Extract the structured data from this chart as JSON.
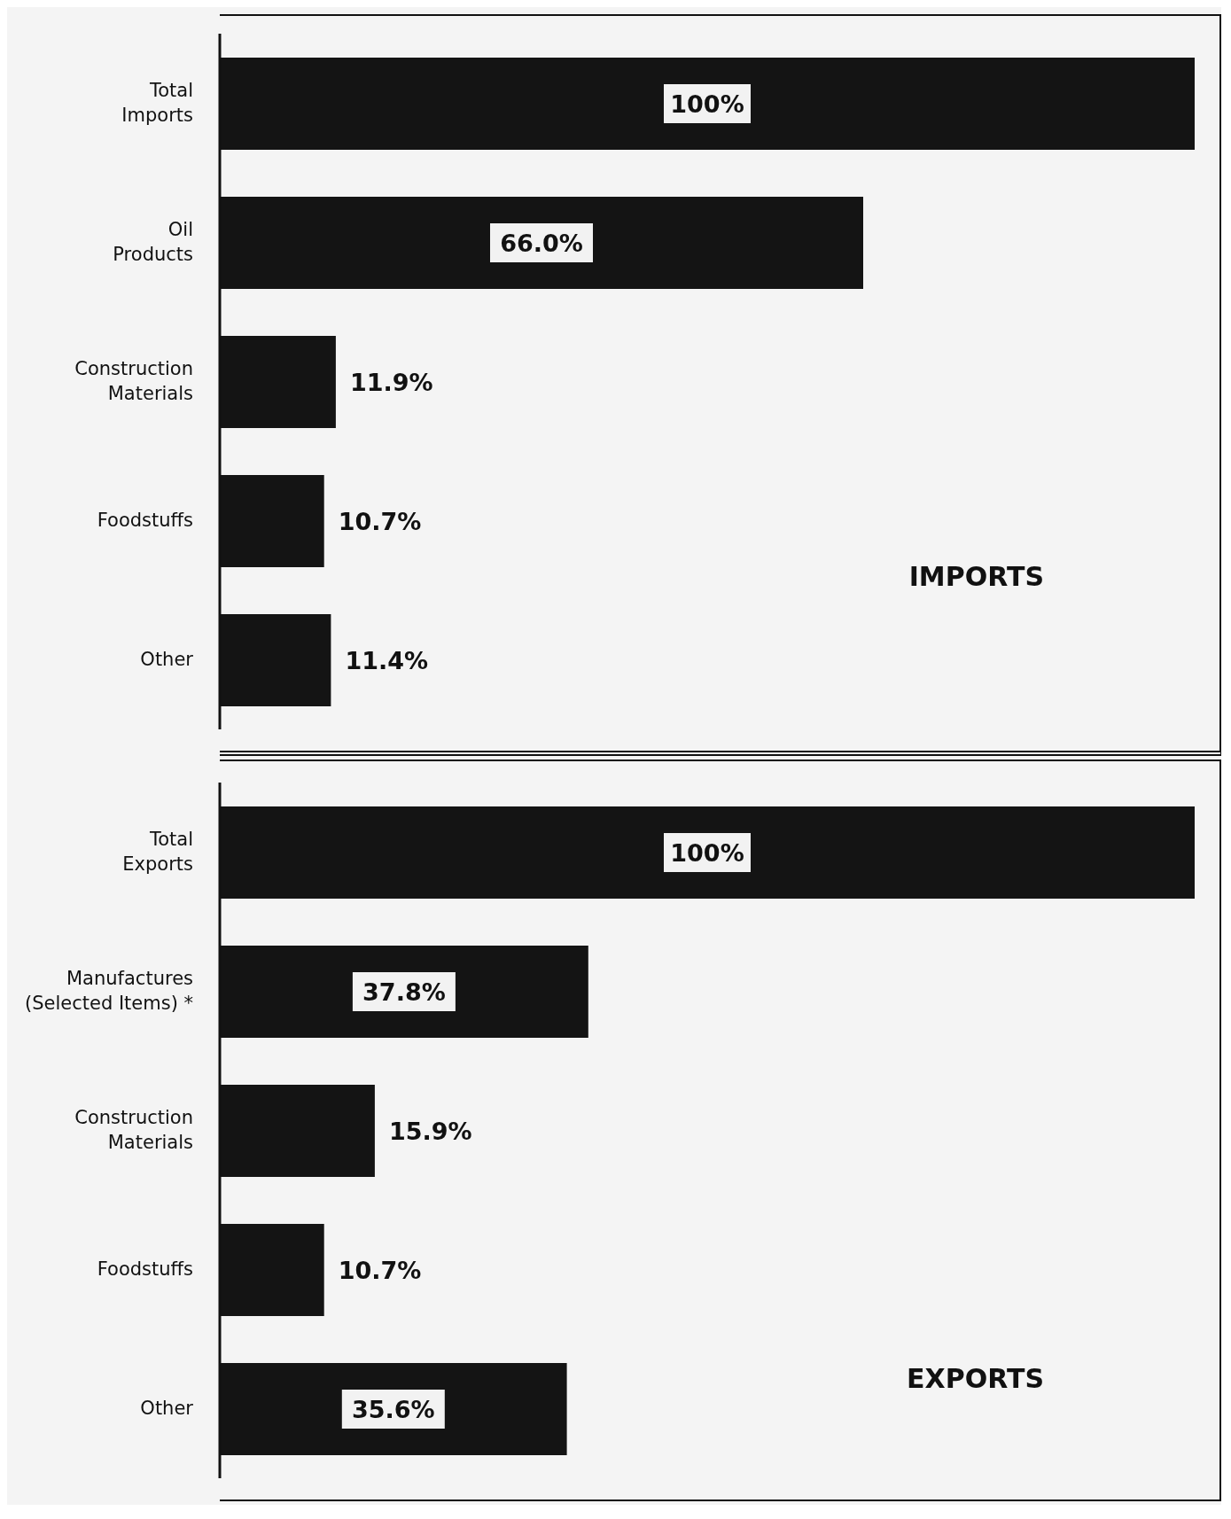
{
  "chart_data": [
    {
      "type": "bar",
      "orientation": "horizontal",
      "title": "IMPORTS",
      "categories": [
        "Total\nImports",
        "Oil\nProducts",
        "Construction\nMaterials",
        "Foodstuffs",
        "Other"
      ],
      "values": [
        100,
        66.0,
        11.9,
        10.7,
        11.4
      ],
      "value_labels": [
        "100%",
        "66.0%",
        "11.9%",
        "10.7%",
        "11.4%"
      ],
      "color": "#141414",
      "legend": false,
      "grid": false
    },
    {
      "type": "bar",
      "orientation": "horizontal",
      "title": "EXPORTS",
      "categories": [
        "Total\nExports",
        "Manufactures\n(Selected Items) *",
        "Construction\nMaterials",
        "Foodstuffs",
        "Other"
      ],
      "values": [
        100,
        37.8,
        15.9,
        10.7,
        35.6
      ],
      "value_labels": [
        "100%",
        "37.8%",
        "15.9%",
        "10.7%",
        "35.6%"
      ],
      "color": "#141414",
      "legend": false,
      "grid": false
    }
  ]
}
